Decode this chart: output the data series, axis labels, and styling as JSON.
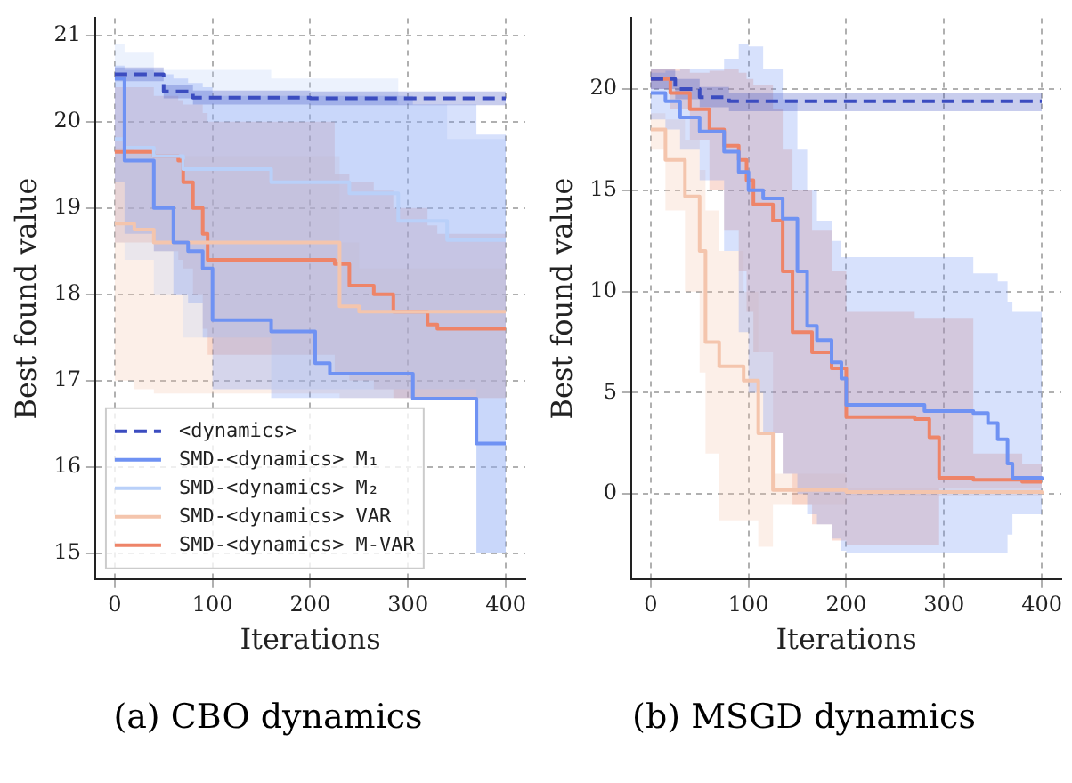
{
  "chart_data": [
    {
      "type": "step",
      "title": "(a) CBO dynamics",
      "xlabel": "Iterations",
      "ylabel": "Best found value",
      "xlim": [
        -20,
        420
      ],
      "ylim": [
        14.7,
        21.2
      ],
      "xticks": [
        0,
        100,
        200,
        300,
        400
      ],
      "yticks": [
        15,
        16,
        17,
        18,
        19,
        20,
        21
      ],
      "grid": true,
      "legend": "bottom left",
      "series": [
        {
          "name": "<dynamics>",
          "color": "#3b4cc0",
          "line_style": "dashed",
          "x": [
            0,
            50,
            80,
            200,
            400
          ],
          "values": [
            20.55,
            20.35,
            20.28,
            20.27,
            20.27
          ],
          "lower": [
            20.47,
            20.27,
            20.2,
            20.19,
            20.19
          ],
          "upper": [
            20.63,
            20.43,
            20.36,
            20.35,
            20.35
          ]
        },
        {
          "name": "SMD-<dynamics> M₁",
          "color": "#6f92f3",
          "x": [
            0,
            10,
            40,
            60,
            75,
            90,
            100,
            160,
            205,
            220,
            305,
            370,
            400
          ],
          "values": [
            20.5,
            19.55,
            19.0,
            18.6,
            18.5,
            18.3,
            17.7,
            17.57,
            17.2,
            17.08,
            16.79,
            16.27,
            16.27
          ],
          "lower": [
            19.3,
            18.7,
            18.5,
            18.0,
            17.9,
            17.5,
            16.9,
            16.8,
            16.8,
            16.8,
            16.8,
            15.0,
            15.0
          ],
          "upper": [
            20.65,
            20.6,
            20.55,
            20.5,
            20.45,
            20.4,
            20.3,
            20.3,
            20.3,
            20.3,
            20.2,
            19.85,
            19.85
          ]
        },
        {
          "name": "SMD-<dynamics> M₂",
          "color": "#b9d0f9",
          "x": [
            0,
            10,
            40,
            70,
            160,
            240,
            290,
            340,
            370,
            400
          ],
          "values": [
            19.8,
            19.7,
            19.6,
            19.45,
            19.3,
            19.17,
            18.85,
            18.63,
            18.63,
            18.63
          ],
          "lower": [
            18.6,
            18.4,
            18.0,
            17.5,
            16.9,
            16.9,
            16.9,
            16.9,
            15.0,
            15.0
          ],
          "upper": [
            20.9,
            20.8,
            20.6,
            20.6,
            20.5,
            20.5,
            20.2,
            19.8,
            19.8,
            19.8
          ]
        },
        {
          "name": "SMD-<dynamics> VAR",
          "color": "#f4c5ad",
          "x": [
            0,
            20,
            40,
            230,
            250,
            400
          ],
          "values": [
            18.82,
            18.75,
            18.6,
            17.86,
            17.8,
            17.8
          ],
          "lower": [
            17.0,
            16.9,
            16.85,
            16.8,
            16.8,
            16.8
          ],
          "upper": [
            19.7,
            19.65,
            19.6,
            18.6,
            18.3,
            18.0
          ]
        },
        {
          "name": "SMD-<dynamics> M-VAR",
          "color": "#ee8468",
          "x": [
            0,
            40,
            65,
            70,
            80,
            90,
            95,
            225,
            240,
            265,
            285,
            320,
            330,
            400
          ],
          "values": [
            19.65,
            19.6,
            19.55,
            19.3,
            19.0,
            18.7,
            18.4,
            18.35,
            18.1,
            18.0,
            17.8,
            17.65,
            17.6,
            17.6
          ],
          "lower": [
            18.6,
            18.5,
            18.4,
            18.3,
            18.0,
            17.6,
            17.3,
            17.1,
            17.0,
            16.9,
            16.8,
            16.8,
            16.8,
            16.8
          ],
          "upper": [
            20.4,
            20.3,
            20.25,
            20.2,
            20.2,
            20.1,
            20.0,
            19.4,
            19.3,
            19.2,
            19.0,
            18.8,
            18.7,
            18.6
          ]
        }
      ]
    },
    {
      "type": "step",
      "title": "(b) MSGD dynamics",
      "xlabel": "Iterations",
      "ylabel": "Best found value",
      "xlim": [
        -20,
        420
      ],
      "ylim": [
        -4.2,
        23.5
      ],
      "xticks": [
        0,
        100,
        200,
        300,
        400
      ],
      "yticks": [
        0,
        5,
        10,
        15,
        20
      ],
      "grid": true,
      "series": [
        {
          "color": "#3b4cc0",
          "line_style": "dashed",
          "x": [
            0,
            25,
            50,
            80,
            400
          ],
          "values": [
            20.5,
            20.0,
            19.6,
            19.4,
            19.4
          ],
          "lower": [
            20.0,
            19.5,
            19.1,
            18.9,
            18.9
          ],
          "upper": [
            21.0,
            20.5,
            20.1,
            19.8,
            19.8
          ]
        },
        {
          "color": "#6f92f3",
          "x": [
            0,
            15,
            30,
            50,
            75,
            90,
            100,
            115,
            135,
            150,
            160,
            170,
            185,
            195,
            200,
            280,
            330,
            345,
            355,
            365,
            370,
            400
          ],
          "values": [
            19.8,
            19.4,
            18.6,
            17.9,
            16.9,
            15.9,
            15.0,
            14.6,
            13.6,
            11.0,
            8.3,
            7.6,
            6.5,
            5.7,
            4.4,
            4.1,
            4.0,
            3.5,
            2.7,
            1.5,
            0.8,
            0.7
          ],
          "lower": [
            18.5,
            18.0,
            17.0,
            15.5,
            12,
            8,
            5,
            3,
            1,
            0,
            -1,
            -1.5,
            -2.2,
            -2.8,
            -2.9,
            -2.9,
            -2.9,
            -2.9,
            -2.9,
            -2.0,
            -1,
            0.4
          ],
          "upper": [
            20.8,
            20.9,
            21,
            21,
            21.5,
            22.2,
            22.1,
            21,
            19.5,
            17,
            15,
            13.5,
            12.5,
            11.7,
            11.7,
            11.7,
            10.9,
            10.9,
            10.5,
            9.5,
            9,
            8.7
          ]
        },
        {
          "color": "#f4c5ad",
          "x": [
            0,
            15,
            35,
            50,
            56,
            70,
            95,
            110,
            125,
            200,
            400
          ],
          "values": [
            18,
            16.5,
            14.7,
            12,
            7.5,
            6.3,
            5.6,
            3,
            0.2,
            0.1,
            0
          ],
          "lower": [
            17,
            14,
            10,
            6,
            2,
            -1.3,
            -1.3,
            -2.6,
            -0.5,
            -0.1,
            -0.1
          ],
          "upper": [
            18.8,
            18.5,
            17.5,
            16,
            14,
            12,
            10,
            7,
            1,
            0.3,
            0.2
          ]
        },
        {
          "color": "#ee8468",
          "x": [
            0,
            20,
            40,
            60,
            75,
            90,
            98,
            105,
            125,
            135,
            145,
            165,
            185,
            200,
            270,
            285,
            295,
            330,
            380,
            400
          ],
          "values": [
            20.5,
            19.8,
            19.0,
            18.0,
            17.2,
            16.5,
            15.5,
            14.3,
            13.5,
            11,
            8,
            7.0,
            6.2,
            3.8,
            3.7,
            2.8,
            0.8,
            0.7,
            0.6,
            0.6
          ],
          "lower": [
            20,
            19,
            17.5,
            15,
            13,
            11,
            9,
            7,
            3,
            1,
            -0.5,
            -1.5,
            -2.3,
            -2.5,
            -2.5,
            -2.5,
            0.3,
            0.3,
            0.3,
            0.3
          ],
          "upper": [
            21,
            21,
            20.8,
            20.9,
            21,
            20.8,
            20.5,
            20.2,
            19,
            17,
            15,
            13,
            11,
            9,
            8.7,
            8.7,
            8.7,
            2,
            1.5,
            1.2
          ]
        }
      ]
    }
  ]
}
